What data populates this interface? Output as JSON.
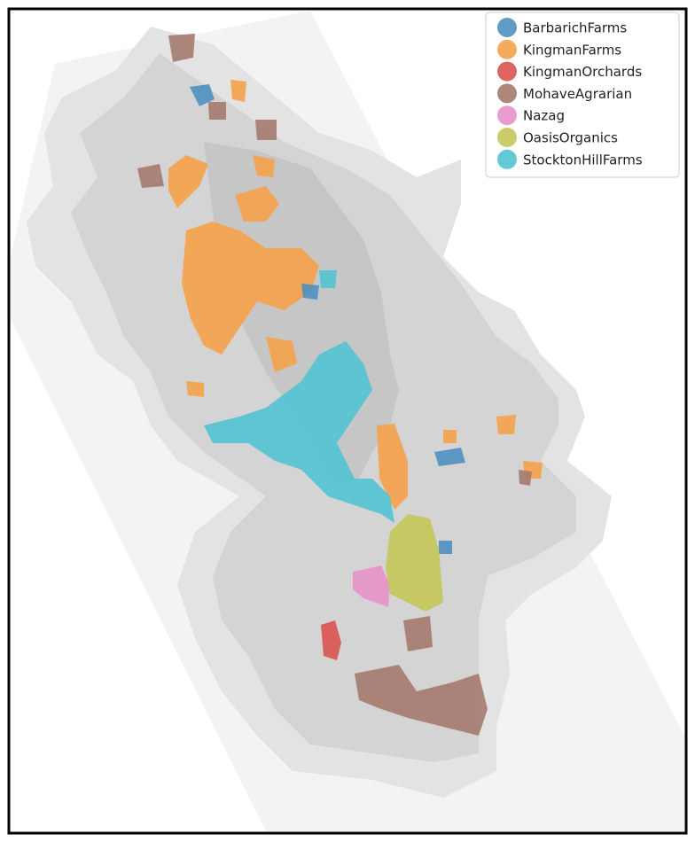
{
  "legend": {
    "items": [
      {
        "name": "BarbarichFarms",
        "color": "#4f8fc0"
      },
      {
        "name": "KingmanFarms",
        "color": "#f5a24a"
      },
      {
        "name": "KingmanOrchards",
        "color": "#d9534f"
      },
      {
        "name": "MohaveAgrarian",
        "color": "#a57a6e"
      },
      {
        "name": "Nazag",
        "color": "#e592c9"
      },
      {
        "name": "OasisOrganics",
        "color": "#c4c65a"
      },
      {
        "name": "StocktonHillFarms",
        "color": "#52c3d2"
      }
    ]
  }
}
